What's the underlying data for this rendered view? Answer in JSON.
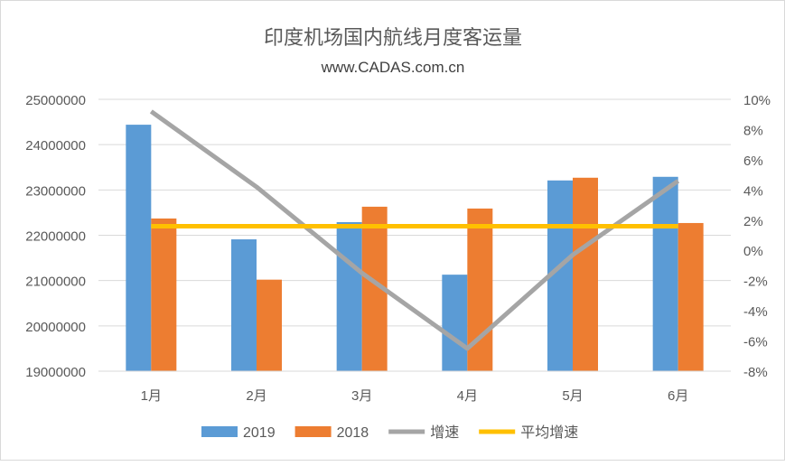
{
  "chart_data": {
    "type": "bar",
    "title": "印度机场国内航线月度客运量",
    "subtitle": "www.CADAS.com.cn",
    "categories": [
      "1月",
      "2月",
      "3月",
      "4月",
      "5月",
      "6月"
    ],
    "series": [
      {
        "name": "2019",
        "type": "bar",
        "axis": "left",
        "color": "#5B9BD5",
        "values": [
          24440000,
          21910000,
          22290000,
          21130000,
          23210000,
          23290000
        ]
      },
      {
        "name": "2018",
        "type": "bar",
        "axis": "left",
        "color": "#ED7D31",
        "values": [
          22370000,
          21020000,
          22630000,
          22590000,
          23270000,
          22270000
        ]
      },
      {
        "name": "增速",
        "type": "line",
        "axis": "right",
        "color": "#A5A5A5",
        "values": [
          9.2,
          4.2,
          -1.5,
          -6.5,
          -0.3,
          4.6
        ]
      },
      {
        "name": "平均增速",
        "type": "line",
        "axis": "right",
        "color": "#FFC000",
        "values": [
          1.6,
          1.6,
          1.6,
          1.6,
          1.6,
          1.6
        ]
      }
    ],
    "ylim": [
      19000000,
      25000000
    ],
    "yticks": [
      "19000000",
      "20000000",
      "21000000",
      "22000000",
      "23000000",
      "24000000",
      "25000000"
    ],
    "y2lim": [
      -8,
      10
    ],
    "y2ticks": [
      "-8%",
      "-6%",
      "-4%",
      "-2%",
      "0%",
      "2%",
      "4%",
      "6%",
      "8%",
      "10%"
    ],
    "grid": true,
    "legend": "bottom"
  }
}
